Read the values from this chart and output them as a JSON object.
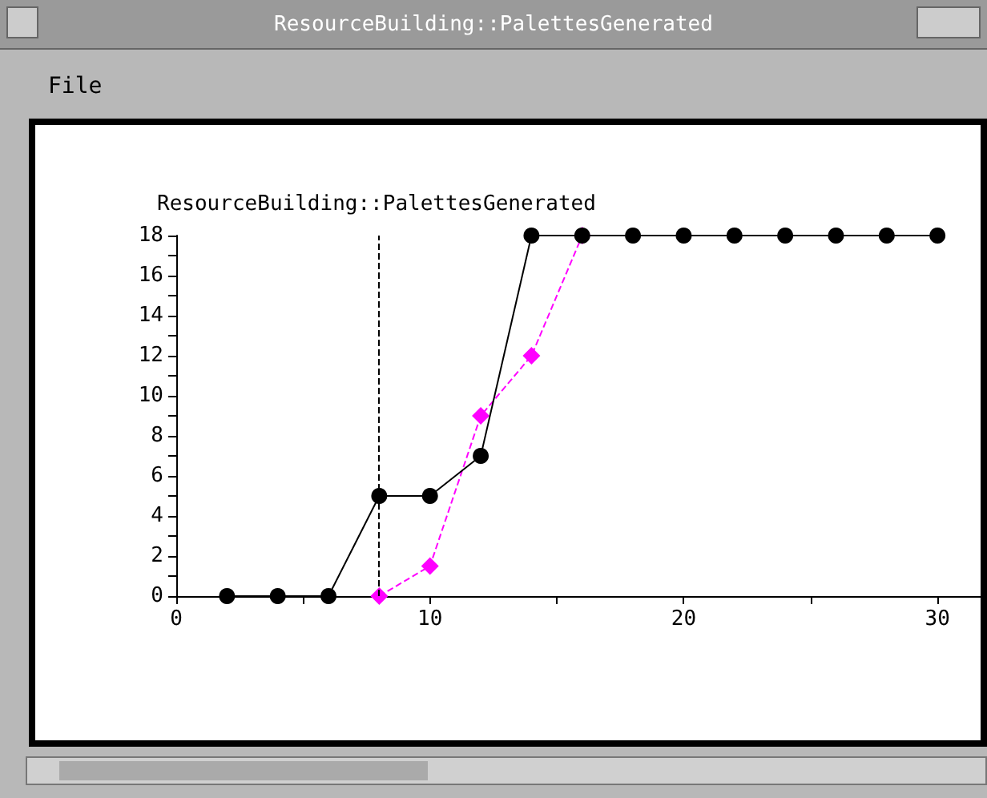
{
  "chart_data": {
    "type": "line",
    "title": "ResourceBuilding::PalettesGenerated",
    "annotations": [
      "File"
    ],
    "xlim": [
      0,
      31.7
    ],
    "xticks": [
      0,
      {
        "value": 5,
        "label": null
      },
      10,
      {
        "value": 15,
        "label": null
      },
      20,
      {
        "value": 25,
        "label": null
      },
      30
    ],
    "ylim": [
      0,
      18
    ],
    "yticks": [
      0,
      {
        "value": 1,
        "label": null
      },
      2,
      {
        "value": 3,
        "label": null
      },
      4,
      {
        "value": 5,
        "label": null
      },
      6,
      {
        "value": 7,
        "label": null
      },
      8,
      {
        "value": 9,
        "label": null
      },
      10,
      {
        "value": 11,
        "label": null
      },
      12,
      {
        "value": 13,
        "label": null
      },
      14,
      {
        "value": 15,
        "label": null
      },
      16,
      {
        "value": 17,
        "label": null
      },
      18
    ],
    "grid": false,
    "ref_lines": [
      {
        "axis": "x",
        "value": 8,
        "color": "#000000",
        "line_style": "dashed"
      }
    ],
    "series": [
      {
        "color": "#ff00ff",
        "marker": "diamond",
        "line_style": "dashed",
        "x": [
          8,
          10,
          12,
          14,
          16
        ],
        "values": [
          0,
          1.5,
          9,
          12,
          18
        ]
      },
      {
        "color": "#000000",
        "marker": "circle",
        "line_style": "solid",
        "x": [
          2,
          4,
          6,
          8,
          10,
          12,
          14,
          16,
          18,
          20,
          22,
          24,
          26,
          28,
          30
        ],
        "values": [
          0,
          0,
          0,
          5,
          5,
          7,
          18,
          18,
          18,
          18,
          18,
          18,
          18,
          18,
          18
        ]
      }
    ]
  }
}
